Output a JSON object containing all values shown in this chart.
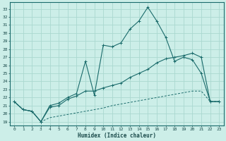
{
  "xlabel": "Humidex (Indice chaleur)",
  "bg_color": "#cceee8",
  "grid_color": "#aad8d0",
  "line_color": "#1a6b6b",
  "xlim": [
    -0.5,
    23.5
  ],
  "ylim": [
    18.5,
    33.8
  ],
  "xticks": [
    0,
    1,
    2,
    3,
    4,
    5,
    6,
    7,
    8,
    9,
    10,
    11,
    12,
    13,
    14,
    15,
    16,
    17,
    18,
    19,
    20,
    21,
    22,
    23
  ],
  "yticks": [
    19,
    20,
    21,
    22,
    23,
    24,
    25,
    26,
    27,
    28,
    29,
    30,
    31,
    32,
    33
  ],
  "line1_x": [
    0,
    1,
    2,
    3,
    4,
    5,
    6,
    7,
    8,
    9,
    10,
    11,
    12,
    13,
    14,
    15,
    16,
    17,
    18,
    19,
    20,
    21,
    22,
    23
  ],
  "line1_y": [
    21.5,
    20.5,
    20.3,
    19.0,
    21.0,
    21.3,
    22.0,
    22.5,
    26.5,
    22.3,
    28.5,
    28.3,
    28.8,
    30.5,
    31.5,
    33.2,
    31.5,
    29.5,
    26.5,
    27.0,
    26.7,
    25.0,
    21.5,
    21.5
  ],
  "line2_x": [
    0,
    1,
    2,
    3,
    4,
    5,
    6,
    7,
    8,
    9,
    10,
    11,
    12,
    13,
    14,
    15,
    16,
    17,
    18,
    19,
    20,
    21,
    22,
    23
  ],
  "line2_y": [
    21.5,
    20.5,
    20.3,
    19.0,
    20.8,
    21.0,
    21.8,
    22.2,
    22.8,
    22.8,
    23.2,
    23.5,
    23.8,
    24.5,
    25.0,
    25.5,
    26.3,
    26.8,
    27.0,
    27.2,
    27.5,
    27.0,
    21.5,
    21.5
  ],
  "line3_x": [
    0,
    1,
    2,
    3,
    4,
    5,
    6,
    7,
    8,
    9,
    10,
    11,
    12,
    13,
    14,
    15,
    16,
    17,
    18,
    19,
    20,
    21,
    22,
    23
  ],
  "line3_y": [
    21.5,
    20.5,
    20.3,
    19.0,
    19.5,
    19.7,
    19.9,
    20.1,
    20.3,
    20.5,
    20.7,
    21.0,
    21.2,
    21.4,
    21.6,
    21.8,
    22.0,
    22.2,
    22.4,
    22.6,
    22.8,
    22.8,
    21.5,
    21.5
  ]
}
